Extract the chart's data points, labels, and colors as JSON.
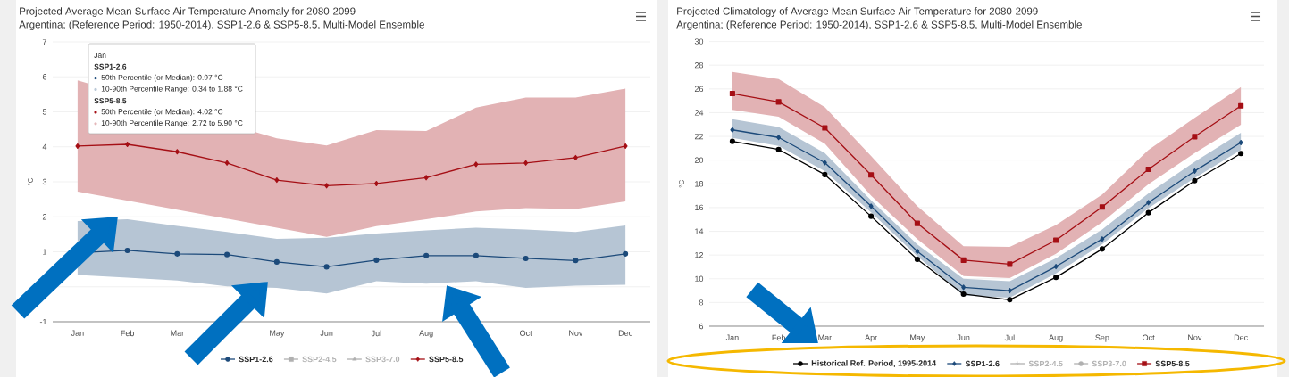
{
  "chart_data": [
    {
      "type": "line",
      "title": "Projected Average Mean Surface Air Temperature Anomaly for 2080-2099",
      "subtitle": "Argentina; (Reference Period: 1950-2014), SSP1-2.6 & SSP5-8.5, Multi-Model Ensemble",
      "ylabel": "°C",
      "categories": [
        "Jan",
        "Feb",
        "Mar",
        null,
        "May",
        "Jun",
        "Jul",
        "Aug",
        null,
        "Oct",
        "Nov",
        "Dec"
      ],
      "ylim": [
        -1,
        7
      ],
      "yticks": [
        -1,
        {
          "value": 0,
          "label": null
        },
        1,
        2,
        3,
        4,
        5,
        6,
        7
      ],
      "grid": "y",
      "legend": "bottom",
      "series": [
        {
          "name": "SSP1-2.6",
          "color": "#1c4a7a",
          "marker": "circle",
          "values": [
            0.97,
            1.04,
            0.94,
            0.92,
            0.71,
            0.57,
            0.76,
            0.89,
            0.89,
            0.81,
            0.75,
            0.94
          ],
          "upper": [
            1.88,
            1.93,
            1.74,
            1.57,
            1.37,
            1.4,
            1.52,
            1.61,
            1.69,
            1.64,
            1.57,
            1.75
          ],
          "lower": [
            0.34,
            0.26,
            0.18,
            0.01,
            -0.03,
            -0.19,
            0.16,
            0.09,
            0.16,
            -0.03,
            0.03,
            0.06
          ]
        },
        {
          "name": "SSP2-4.5",
          "color": "#b0b0b0",
          "marker": "square",
          "values": [
            null,
            null,
            null,
            null,
            null,
            null,
            null,
            null,
            null,
            null,
            null,
            null
          ]
        },
        {
          "name": "SSP3-7.0",
          "color": "#b0b0b0",
          "marker": "triangle",
          "values": [
            null,
            null,
            null,
            null,
            null,
            null,
            null,
            null,
            null,
            null,
            null,
            null
          ]
        },
        {
          "name": "SSP5-8.5",
          "color": "#a50f15",
          "marker": "diamond",
          "values": [
            4.02,
            4.07,
            3.86,
            3.54,
            3.05,
            2.89,
            2.95,
            3.12,
            3.5,
            3.54,
            3.69,
            4.02
          ],
          "upper": [
            5.9,
            null,
            null,
            null,
            4.24,
            4.04,
            4.48,
            4.45,
            5.12,
            5.41,
            5.41,
            5.66
          ],
          "lower": [
            2.72,
            null,
            null,
            null,
            1.69,
            1.43,
            1.73,
            1.93,
            2.15,
            2.25,
            2.22,
            2.44
          ]
        }
      ],
      "annotations": [
        "Jan",
        "SSP1-2.6",
        "50th Percentile (or Median): 0.97 °C",
        "10-90th Percentile Range: 0.34 to 1.88 °C",
        "SSP5-8.5",
        "50th Percentile (or Median): 4.02 °C",
        "10-90th Percentile Range: 2.72 to 5.90 °C"
      ]
    },
    {
      "type": "line",
      "title": "Projected Climatology of Average Mean Surface Air Temperature for 2080-2099",
      "subtitle": "Argentina; (Reference Period: 1950-2014), SSP1-2.6 & SSP5-8.5, Multi-Model Ensemble",
      "ylabel": "°C",
      "categories": [
        "Jan",
        "Feb",
        "Mar",
        "Apr",
        "May",
        "Jun",
        "Jul",
        "Aug",
        "Sep",
        "Oct",
        "Nov",
        "Dec"
      ],
      "ylim": [
        6,
        30
      ],
      "yticks": [
        6,
        8,
        10,
        12,
        14,
        16,
        18,
        20,
        22,
        24,
        26,
        28,
        30
      ],
      "grid": "y",
      "legend": "bottom",
      "series": [
        {
          "name": "Historical Ref. Period, 1995-2014",
          "color": "#000000",
          "marker": "circle",
          "values": [
            21.58,
            20.9,
            18.78,
            15.27,
            11.64,
            8.71,
            8.23,
            10.12,
            12.51,
            15.57,
            18.27,
            20.56
          ]
        },
        {
          "name": "SSP1-2.6",
          "color": "#1c4a7a",
          "marker": "diamond",
          "values": [
            22.55,
            21.91,
            19.79,
            16.12,
            12.31,
            9.28,
            9.0,
            11.03,
            13.35,
            16.42,
            19.08,
            21.48
          ],
          "upper": [
            23.46,
            22.79,
            20.6,
            16.62,
            12.9,
            10.0,
            9.8,
            11.73,
            14.16,
            17.2,
            19.86,
            22.31
          ],
          "lower": [
            21.88,
            21.2,
            19.08,
            15.6,
            11.9,
            8.6,
            8.4,
            10.46,
            12.92,
            15.95,
            18.5,
            20.86
          ]
        },
        {
          "name": "SSP2-4.5",
          "color": "#b0b0b0",
          "marker": "star",
          "values": [
            null,
            null,
            null,
            null,
            null,
            null,
            null,
            null,
            null,
            null,
            null,
            null
          ]
        },
        {
          "name": "SSP3-7.0",
          "color": "#b0b0b0",
          "marker": "circle",
          "values": [
            null,
            null,
            null,
            null,
            null,
            null,
            null,
            null,
            null,
            null,
            null,
            null
          ]
        },
        {
          "name": "SSP5-8.5",
          "color": "#a50f15",
          "marker": "square",
          "values": [
            25.61,
            24.91,
            22.72,
            18.75,
            14.67,
            11.57,
            11.23,
            13.25,
            16.05,
            19.23,
            21.98,
            24.58
          ],
          "upper": [
            27.44,
            26.83,
            24.47,
            20.36,
            16.12,
            12.75,
            12.69,
            14.53,
            17.1,
            20.86,
            23.56,
            26.15
          ],
          "lower": [
            24.24,
            23.66,
            21.38,
            17.0,
            13.35,
            10.22,
            10.06,
            12.1,
            14.77,
            17.97,
            20.6,
            22.99
          ]
        }
      ]
    }
  ]
}
